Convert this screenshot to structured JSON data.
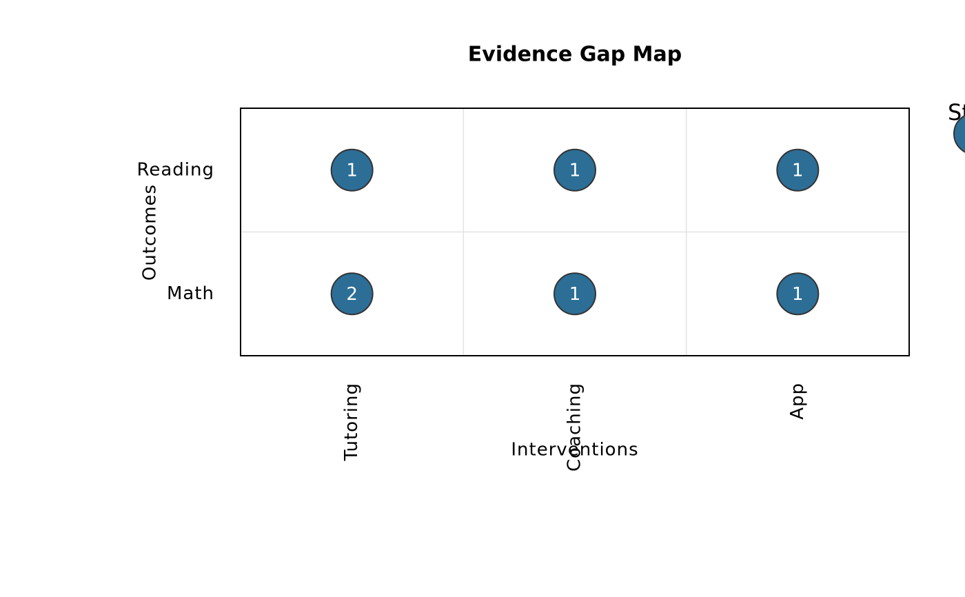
{
  "chart_data": {
    "type": "gap-map",
    "title": "Evidence Gap Map",
    "x_label": "Interventions",
    "y_label": "Outcomes",
    "x_categories": [
      "Tutoring",
      "Coaching",
      "App"
    ],
    "y_categories": [
      "Reading",
      "Math"
    ],
    "values": [
      [
        1,
        1,
        1
      ],
      [
        2,
        1,
        1
      ]
    ],
    "color": "#2c6e96",
    "grid": true,
    "legend_title": "St"
  }
}
